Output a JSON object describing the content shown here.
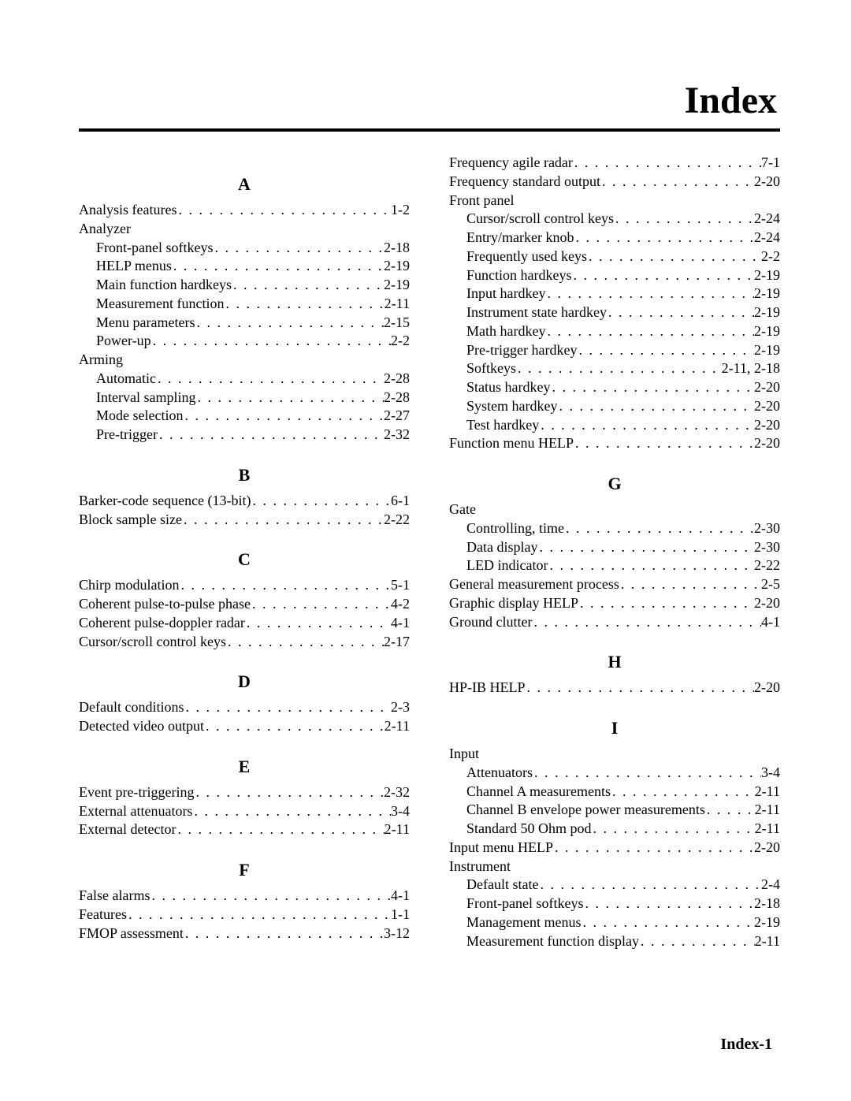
{
  "title": "Index",
  "footer": "Index-1",
  "left_sections": [
    {
      "letter": "A",
      "items": [
        {
          "label": "Analysis features",
          "page": "1-2"
        },
        {
          "label": "Analyzer",
          "header": true
        },
        {
          "label": "Front-panel softkeys",
          "page": "2-18",
          "sub": true
        },
        {
          "label": "HELP menus",
          "page": "2-19",
          "sub": true
        },
        {
          "label": "Main function hardkeys",
          "page": "2-19",
          "sub": true
        },
        {
          "label": "Measurement function",
          "page": "2-11",
          "sub": true
        },
        {
          "label": "Menu parameters",
          "page": "2-15",
          "sub": true
        },
        {
          "label": "Power-up",
          "page": "2-2",
          "sub": true
        },
        {
          "label": "Arming",
          "header": true
        },
        {
          "label": "Automatic",
          "page": "2-28",
          "sub": true
        },
        {
          "label": "Interval sampling",
          "page": "2-28",
          "sub": true
        },
        {
          "label": "Mode selection",
          "page": "2-27",
          "sub": true
        },
        {
          "label": "Pre-trigger",
          "page": "2-32",
          "sub": true
        }
      ]
    },
    {
      "letter": "B",
      "items": [
        {
          "label": "Barker-code sequence (13-bit)",
          "page": "6-1"
        },
        {
          "label": "Block sample size",
          "page": "2-22"
        }
      ]
    },
    {
      "letter": "C",
      "items": [
        {
          "label": "Chirp modulation",
          "page": "5-1"
        },
        {
          "label": "Coherent pulse-to-pulse phase",
          "page": "4-2"
        },
        {
          "label": "Coherent pulse-doppler radar",
          "page": "4-1"
        },
        {
          "label": "Cursor/scroll control keys",
          "page": "2-17"
        }
      ]
    },
    {
      "letter": "D",
      "items": [
        {
          "label": "Default conditions",
          "page": "2-3"
        },
        {
          "label": "Detected video output",
          "page": "2-11"
        }
      ]
    },
    {
      "letter": "E",
      "items": [
        {
          "label": "Event pre-triggering",
          "page": "2-32"
        },
        {
          "label": "External attenuators",
          "page": "3-4"
        },
        {
          "label": "External detector",
          "page": "2-11"
        }
      ]
    },
    {
      "letter": "F",
      "items": [
        {
          "label": "False alarms",
          "page": "4-1"
        },
        {
          "label": "Features",
          "page": "1-1"
        },
        {
          "label": "FMOP assessment",
          "page": "3-12"
        }
      ]
    }
  ],
  "right_sections": [
    {
      "letter": "",
      "items": [
        {
          "label": "Frequency agile radar",
          "page": "7-1"
        },
        {
          "label": "Frequency standard output",
          "page": "2-20"
        },
        {
          "label": "Front panel",
          "header": true
        },
        {
          "label": "Cursor/scroll control keys",
          "page": "2-24",
          "sub": true
        },
        {
          "label": "Entry/marker knob",
          "page": "2-24",
          "sub": true
        },
        {
          "label": "Frequently used keys",
          "page": "2-2",
          "sub": true
        },
        {
          "label": "Function hardkeys",
          "page": "2-19",
          "sub": true
        },
        {
          "label": "Input hardkey",
          "page": "2-19",
          "sub": true
        },
        {
          "label": "Instrument state hardkey",
          "page": "2-19",
          "sub": true
        },
        {
          "label": "Math hardkey",
          "page": "2-19",
          "sub": true
        },
        {
          "label": "Pre-trigger hardkey",
          "page": "2-19",
          "sub": true
        },
        {
          "label": "Softkeys",
          "page": "2-11, 2-18",
          "sub": true
        },
        {
          "label": "Status hardkey",
          "page": "2-20",
          "sub": true
        },
        {
          "label": "System hardkey",
          "page": "2-20",
          "sub": true
        },
        {
          "label": "Test hardkey",
          "page": "2-20",
          "sub": true
        },
        {
          "label": "Function menu HELP",
          "page": "2-20"
        }
      ]
    },
    {
      "letter": "G",
      "items": [
        {
          "label": "Gate",
          "header": true
        },
        {
          "label": "Controlling, time",
          "page": "2-30",
          "sub": true
        },
        {
          "label": "Data display",
          "page": "2-30",
          "sub": true
        },
        {
          "label": "LED indicator",
          "page": "2-22",
          "sub": true
        },
        {
          "label": "General measurement process",
          "page": "2-5"
        },
        {
          "label": "Graphic display HELP",
          "page": "2-20"
        },
        {
          "label": "Ground clutter",
          "page": "4-1"
        }
      ]
    },
    {
      "letter": "H",
      "items": [
        {
          "label": "HP-IB HELP",
          "page": "2-20"
        }
      ]
    },
    {
      "letter": "I",
      "items": [
        {
          "label": "Input",
          "header": true
        },
        {
          "label": "Attenuators",
          "page": "3-4",
          "sub": true
        },
        {
          "label": "Channel A measurements",
          "page": "2-11",
          "sub": true
        },
        {
          "label": "Channel B envelope power measurements",
          "page": "2-11",
          "sub": true
        },
        {
          "label": "Standard 50 Ohm pod",
          "page": "2-11",
          "sub": true
        },
        {
          "label": "Input menu HELP",
          "page": "2-20"
        },
        {
          "label": "Instrument",
          "header": true
        },
        {
          "label": "Default state",
          "page": "2-4",
          "sub": true
        },
        {
          "label": "Front-panel softkeys",
          "page": "2-18",
          "sub": true
        },
        {
          "label": "Management menus",
          "page": "2-19",
          "sub": true
        },
        {
          "label": "Measurement function display",
          "page": "2-11",
          "sub": true
        }
      ]
    }
  ]
}
